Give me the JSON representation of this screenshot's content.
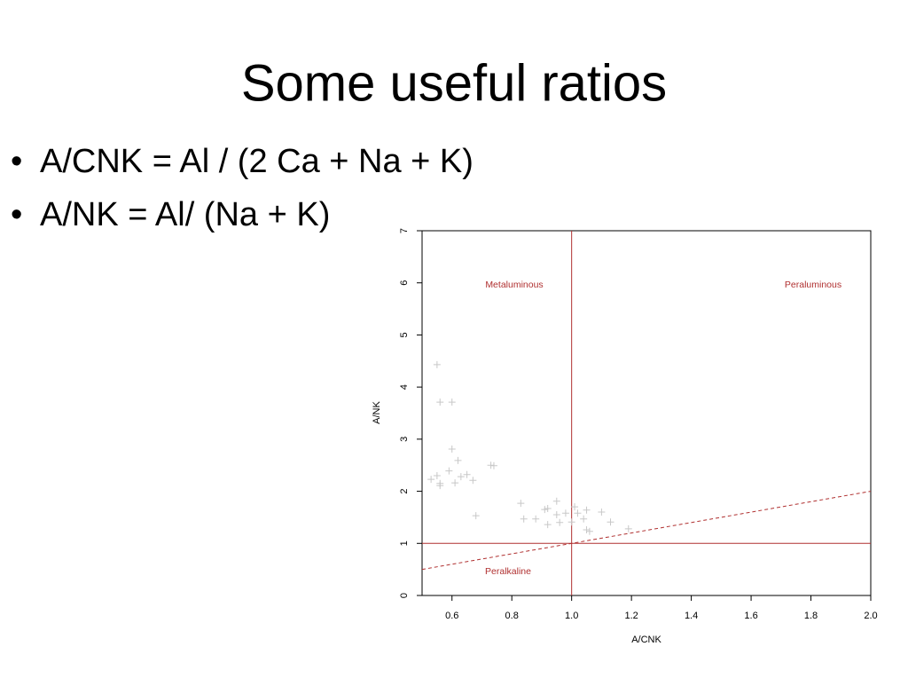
{
  "slide": {
    "title": "Some useful ratios",
    "bullets": [
      "A/CNK = Al / (2 Ca + Na + K)",
      "A/NK = Al/ (Na + K)"
    ]
  },
  "chart_data": {
    "type": "scatter",
    "xlabel": "A/CNK",
    "ylabel": "A/NK",
    "x": [
      0.55,
      0.56,
      0.6,
      0.6,
      0.62,
      0.59,
      0.53,
      0.55,
      0.56,
      0.56,
      0.61,
      0.63,
      0.65,
      0.67,
      0.73,
      0.74,
      0.68,
      0.83,
      0.84,
      0.88,
      0.91,
      0.92,
      0.95,
      0.95,
      0.98,
      0.92,
      0.96,
      1.01,
      1.0,
      1.02,
      1.04,
      1.05,
      1.05,
      1.06,
      1.1,
      1.13,
      1.19
    ],
    "y": [
      4.43,
      3.71,
      3.71,
      2.81,
      2.59,
      2.39,
      2.23,
      2.3,
      2.15,
      2.11,
      2.16,
      2.28,
      2.32,
      2.21,
      2.5,
      2.49,
      1.53,
      1.77,
      1.47,
      1.47,
      1.65,
      1.67,
      1.81,
      1.55,
      1.58,
      1.36,
      1.4,
      1.7,
      1.41,
      1.58,
      1.47,
      1.64,
      1.26,
      1.23,
      1.6,
      1.41,
      1.28
    ],
    "color": "#c8c8c8",
    "marker": "+",
    "xlim": [
      0.5,
      2.0
    ],
    "ylim": [
      0,
      7
    ],
    "xticks": [
      0.6,
      0.8,
      {
        "value": 1,
        "label": "1.0"
      },
      1.2,
      1.4,
      1.6,
      1.8,
      {
        "value": 2,
        "label": "2.0"
      }
    ],
    "yticks": [
      0,
      1,
      2,
      3,
      4,
      5,
      6,
      7
    ],
    "reference_lines": {
      "x": 1,
      "y": 1,
      "color": "#b03030"
    },
    "diagonal": {
      "x": [
        0.5,
        2.0
      ],
      "y": [
        0.5,
        2.0
      ],
      "color": "#b03030",
      "style": "dashed"
    },
    "annotations": [
      "Metaluminous",
      "Peraluminous",
      "Peralkaline"
    ]
  }
}
